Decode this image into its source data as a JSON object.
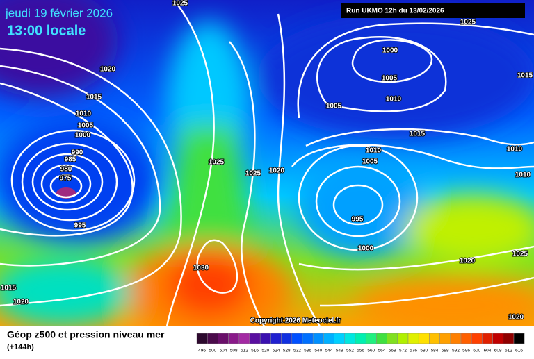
{
  "header": {
    "date": "jeudi 19 février 2026",
    "time": "13:00 locale",
    "run": "Run UKMO 12h du 13/02/2026"
  },
  "isobar_labels": [
    "1025",
    "1020",
    "1015",
    "1010",
    "1005",
    "1000",
    "990",
    "985",
    "980",
    "975",
    "995",
    "1025",
    "1025",
    "1020",
    "1030",
    "1015",
    "1020",
    "1025",
    "1000",
    "1005",
    "1010",
    "1005",
    "1015",
    "1015",
    "1010",
    "1005",
    "1010",
    "1010",
    "995",
    "1000",
    "1020",
    "1025",
    "1020"
  ],
  "copyright": "Copyright 2026 Meteociel.fr",
  "legend": {
    "title": "Géop z500 et pression niveau mer",
    "lead": "(+144h)",
    "labels": [
      496,
      500,
      504,
      508,
      512,
      516,
      520,
      524,
      528,
      532,
      536,
      540,
      544,
      548,
      552,
      556,
      560,
      564,
      568,
      572,
      576,
      580,
      584,
      588,
      592,
      596,
      600,
      604,
      608,
      612,
      616
    ],
    "colors": [
      "#2d0a2e",
      "#4b0b4b",
      "#6a0f6a",
      "#8a1a8a",
      "#a32aa3",
      "#5a0fa0",
      "#3a10b0",
      "#2020d0",
      "#1030e0",
      "#0050ff",
      "#0070ff",
      "#0090ff",
      "#00b0ff",
      "#00d0ff",
      "#00e8e0",
      "#00f0b0",
      "#20f080",
      "#40e040",
      "#80e020",
      "#b0f000",
      "#e0f000",
      "#ffe000",
      "#ffc000",
      "#ffa000",
      "#ff8000",
      "#ff6000",
      "#ff4000",
      "#e02000",
      "#c00000",
      "#900000",
      "#000000"
    ]
  }
}
